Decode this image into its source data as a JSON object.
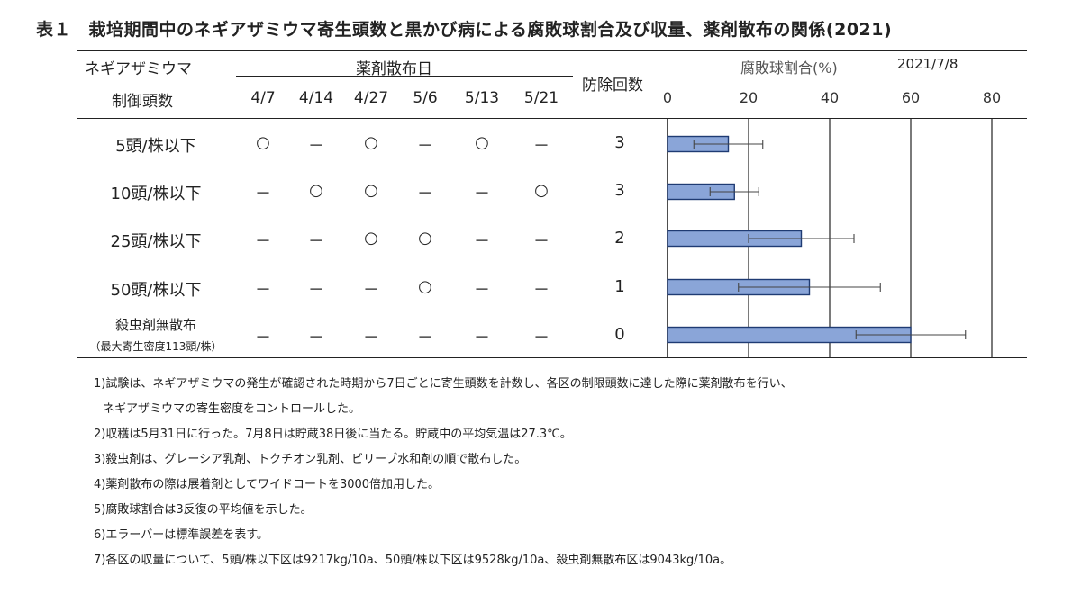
{
  "title": "表１　栽培期間中のネギアザミウマ寄生頭数と黒かび病による腐敗球割合及び収量、薬剤散布の関係(2021)",
  "header": {
    "col1_line1": "ネギアザミウマ",
    "col1_line2": "制御頭数",
    "spray_dates_label": "薬剤散布日",
    "dates": [
      "4/7",
      "4/14",
      "4/27",
      "5/6",
      "5/13",
      "5/21"
    ],
    "control_count_label": "防除回数",
    "rot_label": "腐敗球割合(%)",
    "survey_date": "2021/7/8"
  },
  "rows": [
    {
      "label": "5頭/株以下",
      "sub": "",
      "marks": [
        "○",
        "－",
        "○",
        "－",
        "○",
        "－"
      ],
      "count": "3"
    },
    {
      "label": "10頭/株以下",
      "sub": "",
      "marks": [
        "－",
        "○",
        "○",
        "－",
        "－",
        "○"
      ],
      "count": "3"
    },
    {
      "label": "25頭/株以下",
      "sub": "",
      "marks": [
        "－",
        "－",
        "○",
        "○",
        "－",
        "－"
      ],
      "count": "2"
    },
    {
      "label": "50頭/株以下",
      "sub": "",
      "marks": [
        "－",
        "－",
        "－",
        "○",
        "－",
        "－"
      ],
      "count": "1"
    },
    {
      "label": "殺虫剤無散布",
      "sub": "（最大寄生密度113頭/株）",
      "marks": [
        "－",
        "－",
        "－",
        "－",
        "－",
        "－"
      ],
      "count": "0"
    }
  ],
  "chart_data": {
    "type": "bar",
    "orientation": "horizontal",
    "categories": [
      "5頭/株以下",
      "10頭/株以下",
      "25頭/株以下",
      "50頭/株以下",
      "殺虫剤無散布"
    ],
    "values": [
      15,
      16.5,
      33,
      35,
      60
    ],
    "error": [
      8.5,
      6,
      13,
      17.5,
      13.5
    ],
    "xlim": [
      0,
      80
    ],
    "xticks": [
      "0",
      "20",
      "40",
      "60",
      "80"
    ],
    "xlabel": "腐敗球割合(%)",
    "grid": true,
    "bar_color": "#8aa5d8",
    "bar_border": "#1f3b73"
  },
  "notes": [
    "1)試験は、ネギアザミウマの発生が確認された時期から7日ごとに寄生頭数を計数し、各区の制限頭数に達した際に薬剤散布を行い、",
    "ネギアザミウマの寄生密度をコントロールした。",
    "2)収穫は5月31日に行った。7月8日は貯蔵38日後に当たる。貯蔵中の平均気温は27.3℃。",
    "3)殺虫剤は、グレーシア乳剤、トクチオン乳剤、ビリーブ水和剤の順で散布した。",
    "4)薬剤散布の際は展着剤としてワイドコートを3000倍加用した。",
    "5)腐敗球割合は3反復の平均値を示した。",
    "6)エラーバーは標準誤差を表す。",
    "7)各区の収量について、5頭/株以下区は9217kg/10a、50頭/株以下区は9528kg/10a、殺虫剤無散布区は9043kg/10a。"
  ]
}
